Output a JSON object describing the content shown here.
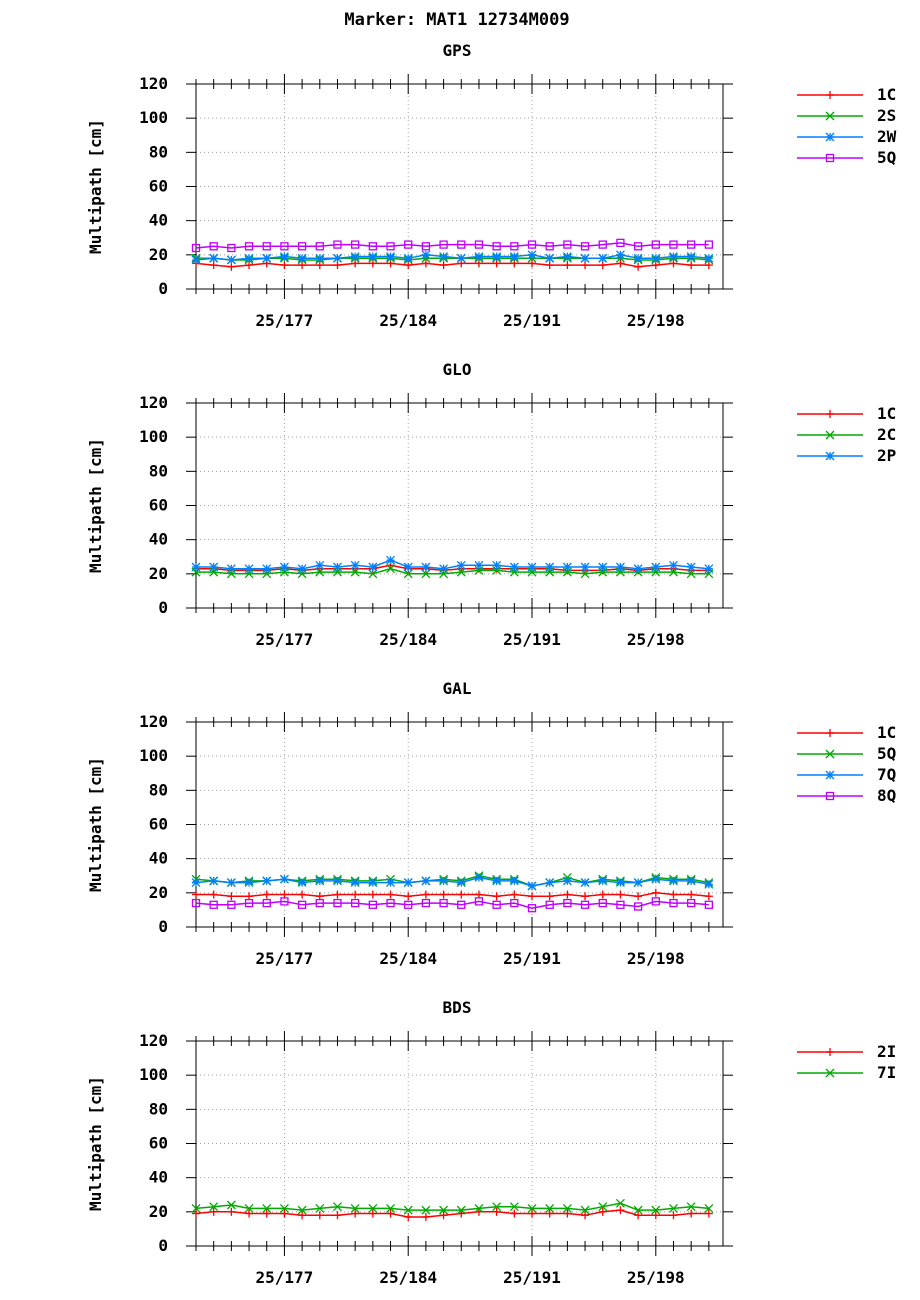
{
  "title": "Marker: MAT1 12734M009",
  "chart_data": [
    {
      "type": "line",
      "title": "GPS",
      "ylabel": "Multipath [cm]",
      "ylim": [
        0,
        120
      ],
      "yticks": [
        0,
        20,
        40,
        60,
        80,
        100,
        120
      ],
      "xlim": [
        172,
        201.8
      ],
      "xticks": [
        177,
        184,
        191,
        198
      ],
      "xtick_labels": [
        "25/177",
        "25/184",
        "25/191",
        "25/198"
      ],
      "x": [
        172,
        173,
        174,
        175,
        176,
        177,
        178,
        179,
        180,
        181,
        182,
        183,
        184,
        185,
        186,
        187,
        188,
        189,
        190,
        191,
        192,
        193,
        194,
        195,
        196,
        197,
        198,
        199,
        200,
        201
      ],
      "grid": true,
      "legend_position": "right",
      "series": [
        {
          "name": "1C",
          "color": "#ff0000",
          "marker": "plus",
          "values": [
            15,
            14,
            13,
            14,
            15,
            14,
            14,
            14,
            14,
            15,
            15,
            15,
            14,
            15,
            14,
            15,
            15,
            15,
            15,
            15,
            14,
            14,
            14,
            14,
            15,
            13,
            14,
            15,
            14,
            14
          ]
        },
        {
          "name": "2S",
          "color": "#00aa00",
          "marker": "cross",
          "values": [
            18,
            18,
            17,
            17,
            18,
            18,
            17,
            17,
            18,
            18,
            18,
            18,
            17,
            18,
            18,
            18,
            18,
            18,
            18,
            18,
            18,
            18,
            18,
            18,
            18,
            17,
            17,
            18,
            18,
            17
          ]
        },
        {
          "name": "2W",
          "color": "#0080ff",
          "marker": "asterisk",
          "values": [
            17,
            18,
            17,
            18,
            18,
            19,
            18,
            18,
            18,
            19,
            19,
            19,
            18,
            20,
            19,
            18,
            19,
            19,
            19,
            20,
            18,
            19,
            18,
            18,
            20,
            18,
            18,
            19,
            19,
            18
          ]
        },
        {
          "name": "5Q",
          "color": "#c000ff",
          "marker": "square",
          "values": [
            24,
            25,
            24,
            25,
            25,
            25,
            25,
            25,
            26,
            26,
            25,
            25,
            26,
            25,
            26,
            26,
            26,
            25,
            25,
            26,
            25,
            26,
            25,
            26,
            27,
            25,
            26,
            26,
            26,
            26
          ]
        }
      ]
    },
    {
      "type": "line",
      "title": "GLO",
      "ylabel": "Multipath [cm]",
      "ylim": [
        0,
        120
      ],
      "yticks": [
        0,
        20,
        40,
        60,
        80,
        100,
        120
      ],
      "xlim": [
        172,
        201.8
      ],
      "xticks": [
        177,
        184,
        191,
        198
      ],
      "xtick_labels": [
        "25/177",
        "25/184",
        "25/191",
        "25/198"
      ],
      "x": [
        172,
        173,
        174,
        175,
        176,
        177,
        178,
        179,
        180,
        181,
        182,
        183,
        184,
        185,
        186,
        187,
        188,
        189,
        190,
        191,
        192,
        193,
        194,
        195,
        196,
        197,
        198,
        199,
        200,
        201
      ],
      "grid": true,
      "legend_position": "right",
      "series": [
        {
          "name": "1C",
          "color": "#ff0000",
          "marker": "plus",
          "values": [
            23,
            23,
            22,
            22,
            22,
            23,
            22,
            23,
            23,
            23,
            23,
            25,
            23,
            23,
            22,
            23,
            23,
            23,
            23,
            23,
            23,
            22,
            22,
            22,
            23,
            22,
            23,
            23,
            22,
            22
          ]
        },
        {
          "name": "2C",
          "color": "#00aa00",
          "marker": "cross",
          "values": [
            21,
            21,
            20,
            20,
            20,
            21,
            20,
            21,
            21,
            21,
            20,
            23,
            20,
            20,
            20,
            21,
            22,
            22,
            21,
            21,
            21,
            21,
            20,
            21,
            21,
            21,
            21,
            21,
            20,
            20
          ]
        },
        {
          "name": "2P",
          "color": "#0080ff",
          "marker": "asterisk",
          "values": [
            24,
            24,
            23,
            23,
            23,
            24,
            23,
            25,
            24,
            25,
            24,
            28,
            24,
            24,
            23,
            25,
            25,
            25,
            24,
            24,
            24,
            24,
            24,
            24,
            24,
            23,
            24,
            25,
            24,
            23
          ]
        }
      ]
    },
    {
      "type": "line",
      "title": "GAL",
      "ylabel": "Multipath [cm]",
      "ylim": [
        0,
        120
      ],
      "yticks": [
        0,
        20,
        40,
        60,
        80,
        100,
        120
      ],
      "xlim": [
        172,
        201.8
      ],
      "xticks": [
        177,
        184,
        191,
        198
      ],
      "xtick_labels": [
        "25/177",
        "25/184",
        "25/191",
        "25/198"
      ],
      "x": [
        172,
        173,
        174,
        175,
        176,
        177,
        178,
        179,
        180,
        181,
        182,
        183,
        184,
        185,
        186,
        187,
        188,
        189,
        190,
        191,
        192,
        193,
        194,
        195,
        196,
        197,
        198,
        199,
        200,
        201
      ],
      "grid": true,
      "legend_position": "right",
      "series": [
        {
          "name": "1C",
          "color": "#ff0000",
          "marker": "plus",
          "values": [
            19,
            19,
            18,
            18,
            19,
            19,
            19,
            18,
            19,
            19,
            19,
            19,
            18,
            19,
            19,
            19,
            19,
            18,
            19,
            18,
            18,
            19,
            18,
            19,
            19,
            18,
            20,
            19,
            19,
            18
          ]
        },
        {
          "name": "5Q",
          "color": "#00aa00",
          "marker": "cross",
          "values": [
            28,
            27,
            26,
            27,
            27,
            28,
            27,
            28,
            28,
            27,
            27,
            28,
            26,
            27,
            28,
            27,
            30,
            28,
            28,
            24,
            26,
            29,
            26,
            28,
            27,
            26,
            29,
            28,
            28,
            26
          ]
        },
        {
          "name": "7Q",
          "color": "#0080ff",
          "marker": "asterisk",
          "values": [
            26,
            27,
            26,
            26,
            27,
            28,
            26,
            27,
            27,
            26,
            26,
            26,
            26,
            27,
            27,
            26,
            29,
            27,
            27,
            24,
            26,
            27,
            26,
            27,
            26,
            26,
            28,
            27,
            27,
            25
          ]
        },
        {
          "name": "8Q",
          "color": "#c000ff",
          "marker": "square",
          "values": [
            14,
            13,
            13,
            14,
            14,
            15,
            13,
            14,
            14,
            14,
            13,
            14,
            13,
            14,
            14,
            13,
            15,
            13,
            14,
            11,
            13,
            14,
            13,
            14,
            13,
            12,
            15,
            14,
            14,
            13
          ]
        }
      ]
    },
    {
      "type": "line",
      "title": "BDS",
      "ylabel": "Multipath [cm]",
      "ylim": [
        0,
        120
      ],
      "yticks": [
        0,
        20,
        40,
        60,
        80,
        100,
        120
      ],
      "xlim": [
        172,
        201.8
      ],
      "xticks": [
        177,
        184,
        191,
        198
      ],
      "xtick_labels": [
        "25/177",
        "25/184",
        "25/191",
        "25/198"
      ],
      "x": [
        172,
        173,
        174,
        175,
        176,
        177,
        178,
        179,
        180,
        181,
        182,
        183,
        184,
        185,
        186,
        187,
        188,
        189,
        190,
        191,
        192,
        193,
        194,
        195,
        196,
        197,
        198,
        199,
        200,
        201
      ],
      "grid": true,
      "legend_position": "right",
      "series": [
        {
          "name": "2I",
          "color": "#ff0000",
          "marker": "plus",
          "values": [
            19,
            20,
            20,
            19,
            19,
            19,
            18,
            18,
            18,
            19,
            19,
            19,
            17,
            17,
            18,
            19,
            20,
            20,
            19,
            19,
            19,
            19,
            18,
            20,
            21,
            18,
            18,
            18,
            19,
            19
          ]
        },
        {
          "name": "7I",
          "color": "#00aa00",
          "marker": "cross",
          "values": [
            22,
            23,
            24,
            22,
            22,
            22,
            21,
            22,
            23,
            22,
            22,
            22,
            21,
            21,
            21,
            21,
            22,
            23,
            23,
            22,
            22,
            22,
            21,
            23,
            25,
            21,
            21,
            22,
            23,
            22
          ]
        }
      ]
    }
  ]
}
